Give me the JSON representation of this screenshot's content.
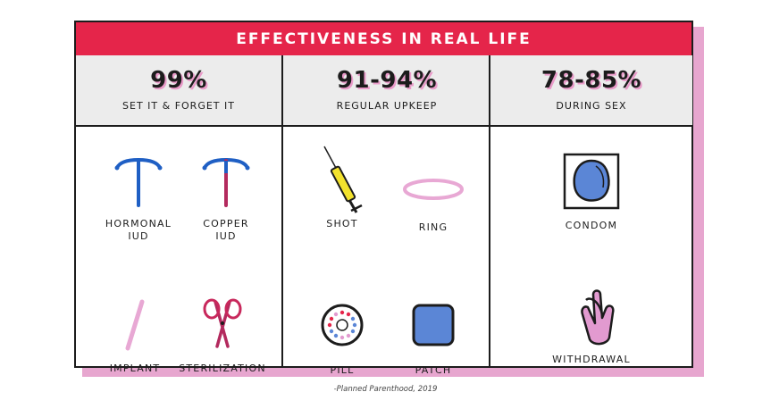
{
  "title": "EFFECTIVENESS IN REAL LIFE",
  "columns": [
    {
      "percent": "99%",
      "subtitle": "SET IT & FORGET IT",
      "methods": [
        {
          "label": "HORMONAL\nIUD",
          "icon": "hormonal-iud-icon"
        },
        {
          "label": "COPPER\nIUD",
          "icon": "copper-iud-icon"
        },
        {
          "label": "IMPLANT",
          "icon": "implant-icon"
        },
        {
          "label": "STERILIZATION",
          "icon": "scissors-icon"
        }
      ]
    },
    {
      "percent": "91-94%",
      "subtitle": "REGULAR UPKEEP",
      "methods": [
        {
          "label": "SHOT",
          "icon": "syringe-icon"
        },
        {
          "label": "RING",
          "icon": "ring-icon"
        },
        {
          "label": "PILL",
          "icon": "pill-pack-icon"
        },
        {
          "label": "PATCH",
          "icon": "patch-icon"
        }
      ]
    },
    {
      "percent": "78-85%",
      "subtitle": "DURING SEX",
      "methods": [
        {
          "label": "CONDOM",
          "icon": "condom-icon"
        },
        {
          "label": "WITHDRAWAL",
          "icon": "crossed-fingers-icon"
        }
      ]
    }
  ],
  "credit": "-Planned Parenthood, 2019",
  "colors": {
    "title_bar": "#e5254a",
    "header_bg": "#ececec",
    "shadow": "#e7a6cf",
    "iud_blue": "#1f5fc4",
    "copper_magenta": "#b32a5e",
    "implant_pink": "#e8a8d4",
    "syringe_yellow": "#f2e22d",
    "patch_blue": "#5b86d6",
    "hand_pink": "#e29ad0"
  }
}
